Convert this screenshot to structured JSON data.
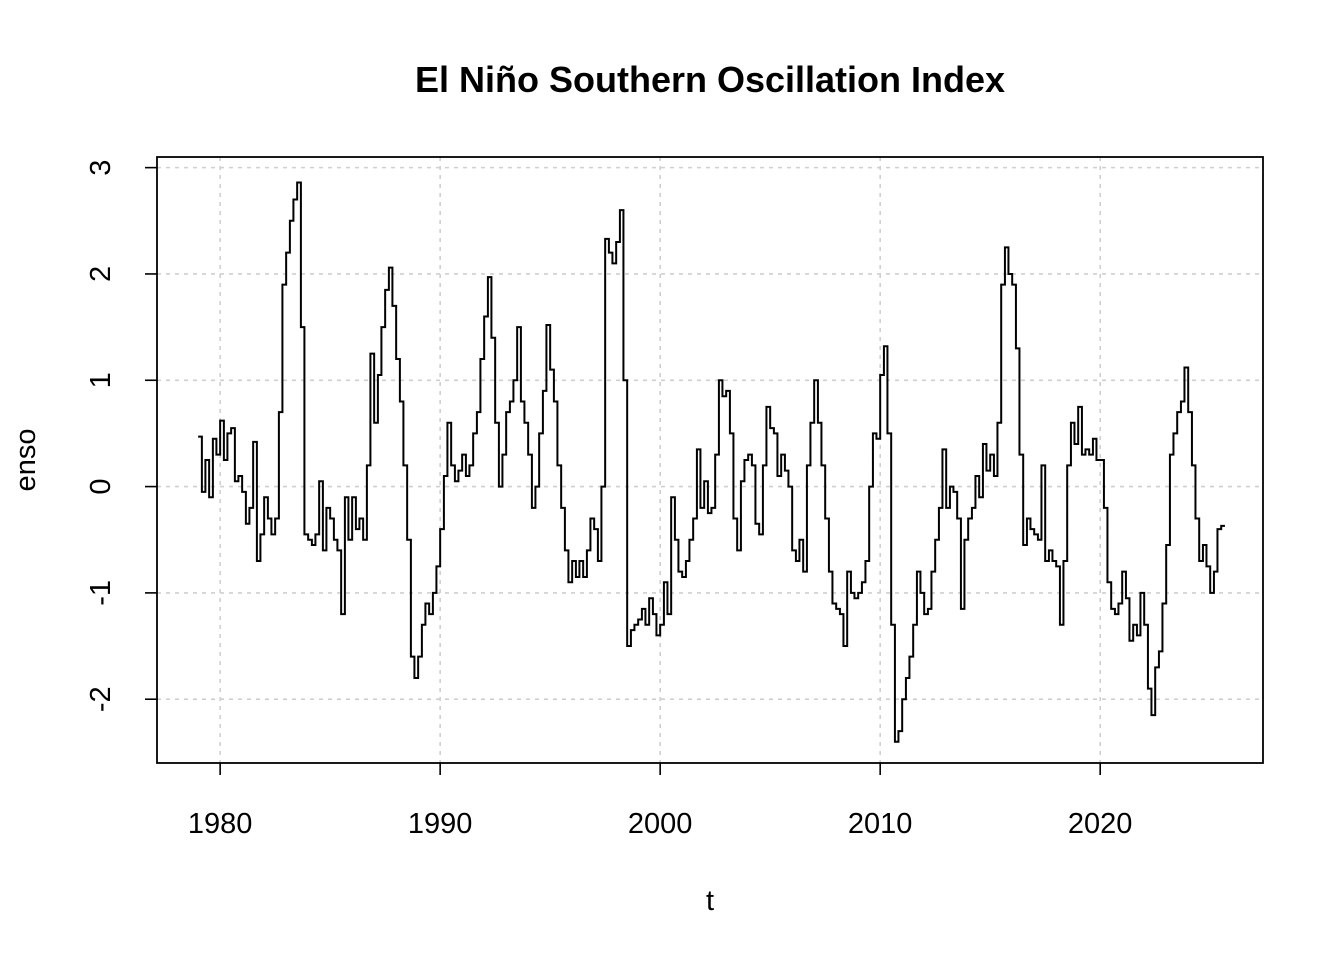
{
  "chart_data": {
    "type": "line",
    "title": "El Niño Southern Oscillation Index",
    "xlabel": "t",
    "ylabel": "enso",
    "x_ticks": [
      1980,
      1990,
      2000,
      2010,
      2020
    ],
    "x_tick_labels": [
      "1980",
      "1990",
      "2000",
      "2010",
      "2020"
    ],
    "y_ticks": [
      -2,
      -1,
      0,
      1,
      2,
      3
    ],
    "y_tick_labels": [
      "-2",
      "-1",
      "0",
      "1",
      "2",
      "3"
    ],
    "xlim": [
      1977.13,
      2027.4
    ],
    "ylim": [
      -2.6,
      3.1
    ],
    "grid": true,
    "line_style": "steps",
    "series": [
      {
        "color": "#000000",
        "points": [
          [
            1979.0,
            0.47
          ],
          [
            1979.17,
            -0.05
          ],
          [
            1979.33,
            0.25
          ],
          [
            1979.5,
            -0.1
          ],
          [
            1979.67,
            0.45
          ],
          [
            1979.83,
            0.3
          ],
          [
            1980.0,
            0.62
          ],
          [
            1980.17,
            0.25
          ],
          [
            1980.33,
            0.5
          ],
          [
            1980.5,
            0.55
          ],
          [
            1980.67,
            0.05
          ],
          [
            1980.83,
            0.1
          ],
          [
            1981.0,
            -0.05
          ],
          [
            1981.17,
            -0.35
          ],
          [
            1981.33,
            -0.2
          ],
          [
            1981.5,
            0.42
          ],
          [
            1981.67,
            -0.7
          ],
          [
            1981.83,
            -0.45
          ],
          [
            1982.0,
            -0.1
          ],
          [
            1982.17,
            -0.3
          ],
          [
            1982.33,
            -0.45
          ],
          [
            1982.5,
            -0.3
          ],
          [
            1982.67,
            0.7
          ],
          [
            1982.83,
            1.9
          ],
          [
            1983.0,
            2.2
          ],
          [
            1983.17,
            2.5
          ],
          [
            1983.33,
            2.7
          ],
          [
            1983.5,
            2.86
          ],
          [
            1983.67,
            1.5
          ],
          [
            1983.83,
            -0.45
          ],
          [
            1984.0,
            -0.5
          ],
          [
            1984.17,
            -0.55
          ],
          [
            1984.33,
            -0.45
          ],
          [
            1984.5,
            0.05
          ],
          [
            1984.67,
            -0.6
          ],
          [
            1984.83,
            -0.2
          ],
          [
            1985.0,
            -0.3
          ],
          [
            1985.17,
            -0.5
          ],
          [
            1985.33,
            -0.6
          ],
          [
            1985.5,
            -1.2
          ],
          [
            1985.67,
            -0.1
          ],
          [
            1985.83,
            -0.5
          ],
          [
            1986.0,
            -0.1
          ],
          [
            1986.17,
            -0.4
          ],
          [
            1986.33,
            -0.3
          ],
          [
            1986.5,
            -0.5
          ],
          [
            1986.67,
            0.2
          ],
          [
            1986.83,
            1.25
          ],
          [
            1987.0,
            0.6
          ],
          [
            1987.17,
            1.05
          ],
          [
            1987.33,
            1.5
          ],
          [
            1987.5,
            1.85
          ],
          [
            1987.67,
            2.06
          ],
          [
            1987.83,
            1.7
          ],
          [
            1988.0,
            1.2
          ],
          [
            1988.17,
            0.8
          ],
          [
            1988.33,
            0.2
          ],
          [
            1988.5,
            -0.5
          ],
          [
            1988.67,
            -1.6
          ],
          [
            1988.83,
            -1.8
          ],
          [
            1989.0,
            -1.6
          ],
          [
            1989.17,
            -1.3
          ],
          [
            1989.33,
            -1.1
          ],
          [
            1989.5,
            -1.2
          ],
          [
            1989.67,
            -1.0
          ],
          [
            1989.83,
            -0.75
          ],
          [
            1990.0,
            -0.4
          ],
          [
            1990.17,
            0.1
          ],
          [
            1990.33,
            0.6
          ],
          [
            1990.5,
            0.2
          ],
          [
            1990.67,
            0.05
          ],
          [
            1990.83,
            0.15
          ],
          [
            1991.0,
            0.3
          ],
          [
            1991.17,
            0.1
          ],
          [
            1991.33,
            0.2
          ],
          [
            1991.5,
            0.5
          ],
          [
            1991.67,
            0.7
          ],
          [
            1991.83,
            1.2
          ],
          [
            1992.0,
            1.6
          ],
          [
            1992.17,
            1.97
          ],
          [
            1992.33,
            1.4
          ],
          [
            1992.5,
            0.6
          ],
          [
            1992.67,
            0.0
          ],
          [
            1992.83,
            0.3
          ],
          [
            1993.0,
            0.7
          ],
          [
            1993.17,
            0.8
          ],
          [
            1993.33,
            1.0
          ],
          [
            1993.5,
            1.5
          ],
          [
            1993.67,
            0.8
          ],
          [
            1993.83,
            0.6
          ],
          [
            1994.0,
            0.3
          ],
          [
            1994.17,
            -0.2
          ],
          [
            1994.33,
            0.0
          ],
          [
            1994.5,
            0.5
          ],
          [
            1994.67,
            0.9
          ],
          [
            1994.83,
            1.52
          ],
          [
            1995.0,
            1.1
          ],
          [
            1995.17,
            0.8
          ],
          [
            1995.33,
            0.2
          ],
          [
            1995.5,
            -0.2
          ],
          [
            1995.67,
            -0.6
          ],
          [
            1995.83,
            -0.9
          ],
          [
            1996.0,
            -0.7
          ],
          [
            1996.17,
            -0.85
          ],
          [
            1996.33,
            -0.7
          ],
          [
            1996.5,
            -0.85
          ],
          [
            1996.67,
            -0.6
          ],
          [
            1996.83,
            -0.3
          ],
          [
            1997.0,
            -0.4
          ],
          [
            1997.17,
            -0.7
          ],
          [
            1997.33,
            0.0
          ],
          [
            1997.5,
            2.33
          ],
          [
            1997.67,
            2.2
          ],
          [
            1997.83,
            2.1
          ],
          [
            1998.0,
            2.3
          ],
          [
            1998.17,
            2.6
          ],
          [
            1998.33,
            1.0
          ],
          [
            1998.5,
            -1.5
          ],
          [
            1998.67,
            -1.35
          ],
          [
            1998.83,
            -1.3
          ],
          [
            1999.0,
            -1.25
          ],
          [
            1999.17,
            -1.15
          ],
          [
            1999.33,
            -1.3
          ],
          [
            1999.5,
            -1.05
          ],
          [
            1999.67,
            -1.2
          ],
          [
            1999.83,
            -1.4
          ],
          [
            2000.0,
            -1.3
          ],
          [
            2000.17,
            -0.9
          ],
          [
            2000.33,
            -1.2
          ],
          [
            2000.5,
            -0.1
          ],
          [
            2000.67,
            -0.5
          ],
          [
            2000.83,
            -0.8
          ],
          [
            2001.0,
            -0.85
          ],
          [
            2001.17,
            -0.7
          ],
          [
            2001.33,
            -0.5
          ],
          [
            2001.5,
            -0.3
          ],
          [
            2001.67,
            0.35
          ],
          [
            2001.83,
            -0.2
          ],
          [
            2002.0,
            0.05
          ],
          [
            2002.17,
            -0.25
          ],
          [
            2002.33,
            -0.2
          ],
          [
            2002.5,
            0.3
          ],
          [
            2002.67,
            1.0
          ],
          [
            2002.83,
            0.85
          ],
          [
            2003.0,
            0.9
          ],
          [
            2003.17,
            0.5
          ],
          [
            2003.33,
            -0.3
          ],
          [
            2003.5,
            -0.6
          ],
          [
            2003.67,
            0.05
          ],
          [
            2003.83,
            0.25
          ],
          [
            2004.0,
            0.3
          ],
          [
            2004.17,
            0.2
          ],
          [
            2004.33,
            -0.35
          ],
          [
            2004.5,
            -0.45
          ],
          [
            2004.67,
            0.2
          ],
          [
            2004.83,
            0.75
          ],
          [
            2005.0,
            0.55
          ],
          [
            2005.17,
            0.5
          ],
          [
            2005.33,
            0.1
          ],
          [
            2005.5,
            0.3
          ],
          [
            2005.67,
            0.15
          ],
          [
            2005.83,
            0.0
          ],
          [
            2006.0,
            -0.6
          ],
          [
            2006.17,
            -0.7
          ],
          [
            2006.33,
            -0.5
          ],
          [
            2006.5,
            -0.8
          ],
          [
            2006.67,
            0.2
          ],
          [
            2006.83,
            0.6
          ],
          [
            2007.0,
            1.0
          ],
          [
            2007.17,
            0.6
          ],
          [
            2007.33,
            0.2
          ],
          [
            2007.5,
            -0.3
          ],
          [
            2007.67,
            -0.8
          ],
          [
            2007.83,
            -1.1
          ],
          [
            2008.0,
            -1.15
          ],
          [
            2008.17,
            -1.2
          ],
          [
            2008.33,
            -1.5
          ],
          [
            2008.5,
            -0.8
          ],
          [
            2008.67,
            -1.0
          ],
          [
            2008.83,
            -1.05
          ],
          [
            2009.0,
            -1.0
          ],
          [
            2009.17,
            -0.9
          ],
          [
            2009.33,
            -0.7
          ],
          [
            2009.5,
            0.0
          ],
          [
            2009.67,
            0.5
          ],
          [
            2009.83,
            0.45
          ],
          [
            2010.0,
            1.05
          ],
          [
            2010.17,
            1.32
          ],
          [
            2010.33,
            0.5
          ],
          [
            2010.5,
            -1.3
          ],
          [
            2010.67,
            -2.4
          ],
          [
            2010.83,
            -2.3
          ],
          [
            2011.0,
            -2.0
          ],
          [
            2011.17,
            -1.8
          ],
          [
            2011.33,
            -1.6
          ],
          [
            2011.5,
            -1.3
          ],
          [
            2011.67,
            -0.8
          ],
          [
            2011.83,
            -1.0
          ],
          [
            2012.0,
            -1.2
          ],
          [
            2012.17,
            -1.15
          ],
          [
            2012.33,
            -0.8
          ],
          [
            2012.5,
            -0.5
          ],
          [
            2012.67,
            -0.2
          ],
          [
            2012.83,
            0.35
          ],
          [
            2013.0,
            -0.2
          ],
          [
            2013.17,
            0.0
          ],
          [
            2013.33,
            -0.05
          ],
          [
            2013.5,
            -0.3
          ],
          [
            2013.67,
            -1.15
          ],
          [
            2013.83,
            -0.5
          ],
          [
            2014.0,
            -0.3
          ],
          [
            2014.17,
            -0.2
          ],
          [
            2014.33,
            0.1
          ],
          [
            2014.5,
            -0.1
          ],
          [
            2014.67,
            0.4
          ],
          [
            2014.83,
            0.15
          ],
          [
            2015.0,
            0.3
          ],
          [
            2015.17,
            0.1
          ],
          [
            2015.33,
            0.6
          ],
          [
            2015.5,
            1.9
          ],
          [
            2015.67,
            2.25
          ],
          [
            2015.83,
            2.0
          ],
          [
            2016.0,
            1.9
          ],
          [
            2016.17,
            1.3
          ],
          [
            2016.33,
            0.3
          ],
          [
            2016.5,
            -0.55
          ],
          [
            2016.67,
            -0.3
          ],
          [
            2016.83,
            -0.4
          ],
          [
            2017.0,
            -0.45
          ],
          [
            2017.17,
            -0.5
          ],
          [
            2017.33,
            0.2
          ],
          [
            2017.5,
            -0.7
          ],
          [
            2017.67,
            -0.6
          ],
          [
            2017.83,
            -0.7
          ],
          [
            2018.0,
            -0.75
          ],
          [
            2018.17,
            -1.3
          ],
          [
            2018.33,
            -0.7
          ],
          [
            2018.5,
            0.2
          ],
          [
            2018.67,
            0.6
          ],
          [
            2018.83,
            0.4
          ],
          [
            2019.0,
            0.75
          ],
          [
            2019.17,
            0.3
          ],
          [
            2019.33,
            0.35
          ],
          [
            2019.5,
            0.3
          ],
          [
            2019.67,
            0.45
          ],
          [
            2019.83,
            0.25
          ],
          [
            2020.0,
            0.25
          ],
          [
            2020.17,
            -0.2
          ],
          [
            2020.33,
            -0.9
          ],
          [
            2020.5,
            -1.15
          ],
          [
            2020.67,
            -1.2
          ],
          [
            2020.83,
            -1.1
          ],
          [
            2021.0,
            -0.8
          ],
          [
            2021.17,
            -1.05
          ],
          [
            2021.33,
            -1.45
          ],
          [
            2021.5,
            -1.3
          ],
          [
            2021.67,
            -1.4
          ],
          [
            2021.83,
            -1.0
          ],
          [
            2022.0,
            -1.3
          ],
          [
            2022.17,
            -1.9
          ],
          [
            2022.33,
            -2.15
          ],
          [
            2022.5,
            -1.7
          ],
          [
            2022.67,
            -1.55
          ],
          [
            2022.83,
            -1.1
          ],
          [
            2023.0,
            -0.55
          ],
          [
            2023.17,
            0.3
          ],
          [
            2023.33,
            0.5
          ],
          [
            2023.5,
            0.7
          ],
          [
            2023.67,
            0.8
          ],
          [
            2023.83,
            1.12
          ],
          [
            2024.0,
            0.7
          ],
          [
            2024.17,
            0.2
          ],
          [
            2024.33,
            -0.3
          ],
          [
            2024.5,
            -0.7
          ],
          [
            2024.67,
            -0.55
          ],
          [
            2024.83,
            -0.75
          ],
          [
            2025.0,
            -1.0
          ],
          [
            2025.17,
            -0.8
          ],
          [
            2025.33,
            -0.4
          ],
          [
            2025.5,
            -0.37
          ],
          [
            2025.67,
            -0.37
          ]
        ]
      }
    ]
  }
}
